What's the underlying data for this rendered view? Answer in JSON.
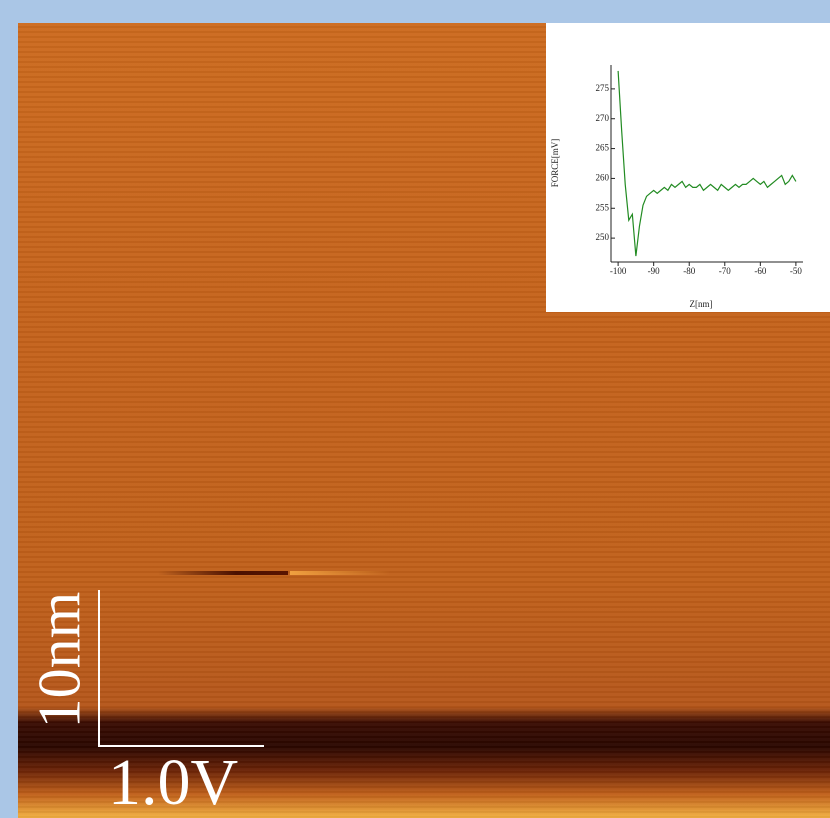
{
  "scale_bar": {
    "vertical_label": "10nm",
    "horizontal_label": "1.0V"
  },
  "chart_data": {
    "type": "line",
    "x_label": "Z[nm]",
    "y_label": "FORCE[mV]",
    "color": "#228b22",
    "x": [
      -100,
      -99,
      -98,
      -97,
      -96,
      -95,
      -94,
      -93,
      -92,
      -91,
      -90,
      -89,
      -88,
      -87,
      -86,
      -85,
      -84,
      -83,
      -82,
      -81,
      -80,
      -79,
      -78,
      -77,
      -76,
      -75,
      -74,
      -73,
      -72,
      -71,
      -70,
      -69,
      -68,
      -67,
      -66,
      -65,
      -64,
      -63,
      -62,
      -61,
      -60,
      -59,
      -58,
      -57,
      -56,
      -55,
      -54,
      -53,
      -52,
      -51,
      -50
    ],
    "values": [
      278,
      268,
      259,
      253,
      254,
      247,
      252,
      255.5,
      257,
      257.5,
      258,
      257.5,
      258,
      258.5,
      258,
      259,
      258.5,
      259,
      259.5,
      258.5,
      259,
      258.5,
      258.5,
      259,
      258,
      258.5,
      259,
      258.5,
      258,
      259,
      258.5,
      258,
      258.5,
      259,
      258.5,
      259,
      259,
      259.5,
      260,
      259.5,
      259,
      259.5,
      258.5,
      259,
      259.5,
      260,
      260.5,
      259,
      259.5,
      260.5,
      259.5
    ],
    "xlim": [
      -102,
      -48
    ],
    "ylim": [
      246,
      279
    ],
    "xticks": [
      -100,
      -90,
      -80,
      -70,
      -60,
      -50
    ],
    "yticks": [
      250,
      255,
      260,
      265,
      270,
      275
    ]
  }
}
